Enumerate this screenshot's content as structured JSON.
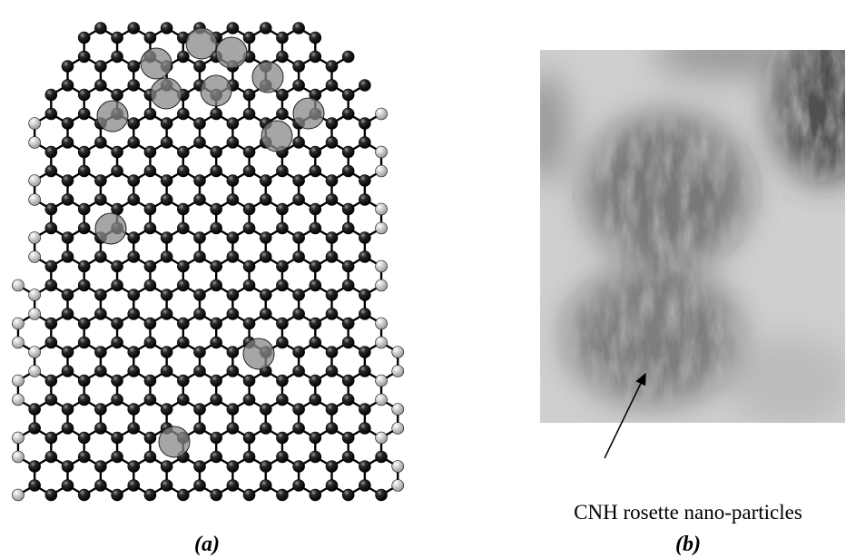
{
  "panels": [
    {
      "label": "(a)"
    },
    {
      "label": "(b)",
      "annotation": "CNH rosette nano-particles"
    }
  ]
}
